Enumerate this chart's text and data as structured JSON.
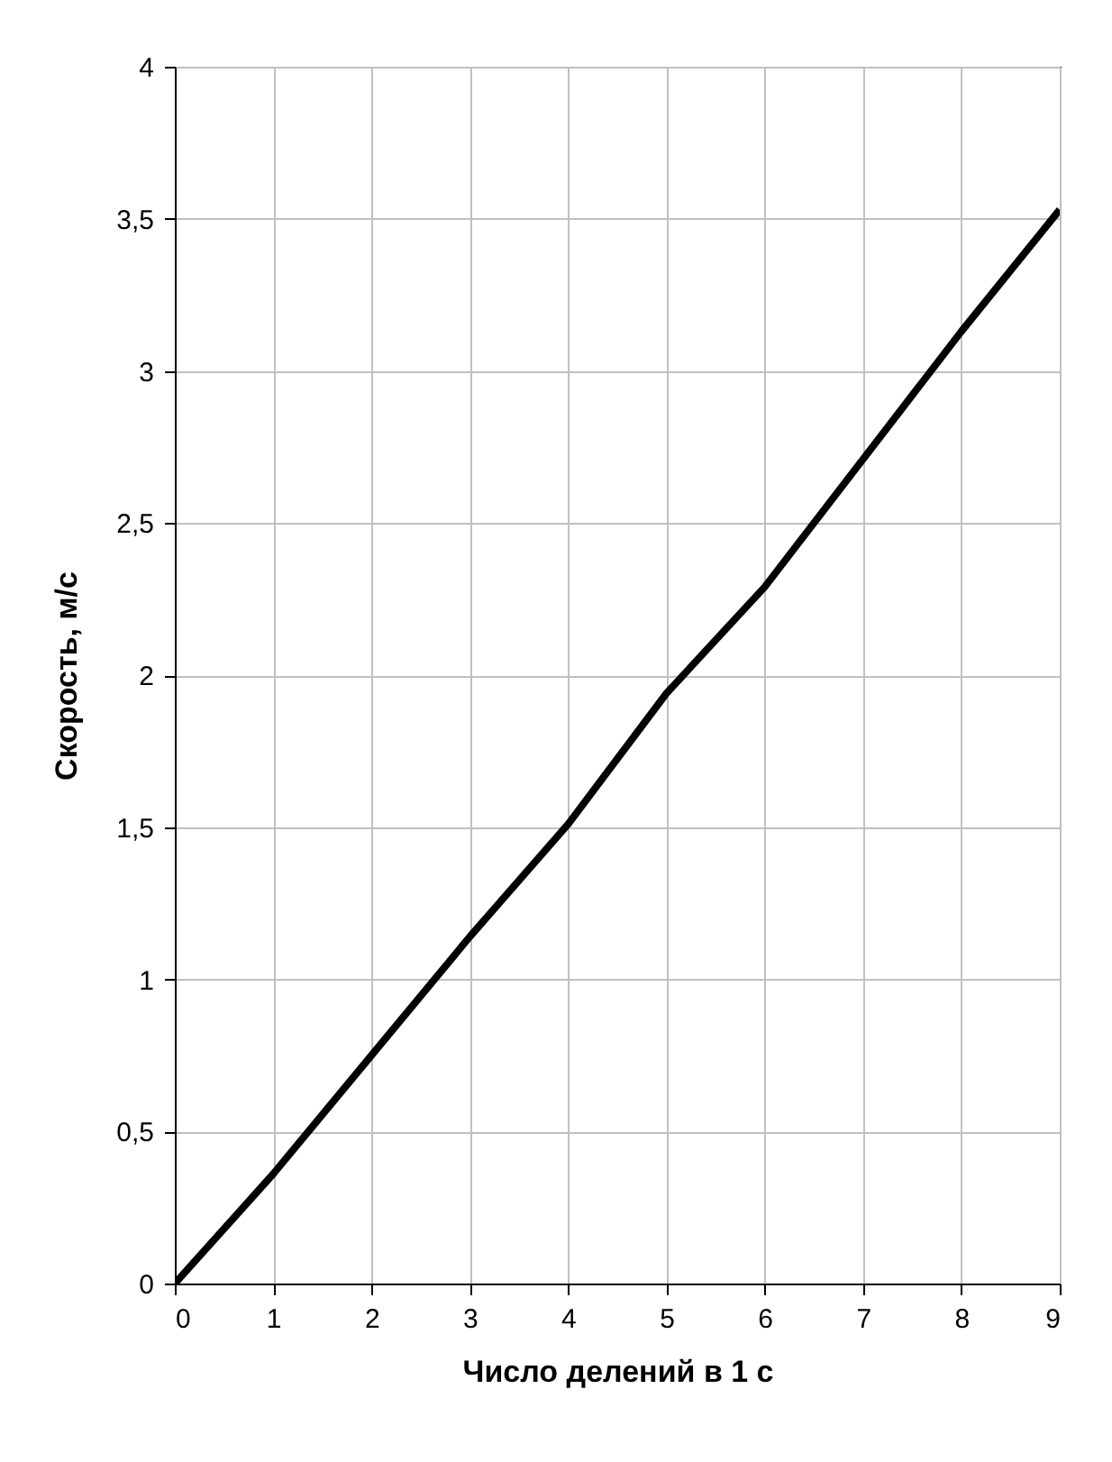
{
  "chart_data": {
    "type": "line",
    "xlabel": "Число делений в 1 с",
    "ylabel": "Скорость, м/с",
    "x": [
      0,
      1,
      2,
      3,
      4,
      5,
      6,
      7,
      8,
      9
    ],
    "series": [
      {
        "color": "#000000",
        "values": [
          0,
          0.36,
          0.75,
          1.14,
          1.51,
          1.94,
          2.29,
          2.71,
          3.13,
          3.53
        ]
      }
    ],
    "xlim": [
      0,
      9
    ],
    "xticks": [
      0,
      1,
      2,
      3,
      4,
      5,
      6,
      7,
      8,
      9
    ],
    "ylim": [
      0,
      4
    ],
    "yticks": [
      0,
      {
        "value": 0.5,
        "label": "0,5"
      },
      1,
      {
        "value": 1.5,
        "label": "1,5"
      },
      2,
      {
        "value": 2.5,
        "label": "2,5"
      },
      3,
      {
        "value": 3.5,
        "label": "3,5"
      },
      4
    ],
    "grid": true,
    "marker": "none",
    "line_style": "solid"
  }
}
